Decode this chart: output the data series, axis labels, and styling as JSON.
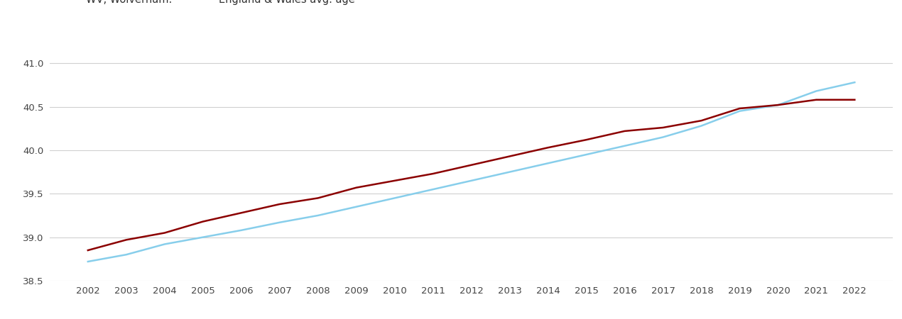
{
  "years": [
    2002,
    2003,
    2004,
    2005,
    2006,
    2007,
    2008,
    2009,
    2010,
    2011,
    2012,
    2013,
    2014,
    2015,
    2016,
    2017,
    2018,
    2019,
    2020,
    2021,
    2022
  ],
  "wv_wolverhampton": [
    38.85,
    38.97,
    39.05,
    39.18,
    39.28,
    39.38,
    39.45,
    39.57,
    39.65,
    39.73,
    39.83,
    39.93,
    40.03,
    40.12,
    40.22,
    40.26,
    40.34,
    40.48,
    40.52,
    40.58,
    40.58
  ],
  "england_wales": [
    38.72,
    38.8,
    38.92,
    39.0,
    39.08,
    39.17,
    39.25,
    39.35,
    39.45,
    39.55,
    39.65,
    39.75,
    39.85,
    39.95,
    40.05,
    40.15,
    40.28,
    40.45,
    40.52,
    40.68,
    40.78
  ],
  "wv_color": "#8B0000",
  "ew_color": "#87CEEB",
  "ylim_min": 38.5,
  "ylim_max": 41.25,
  "ytick_values": [
    38.5,
    39.0,
    39.5,
    40.0,
    40.5,
    41.0
  ],
  "ytick_labels": [
    "38.5",
    "39.0",
    "39.5",
    "40.0",
    "40.5",
    "41.0"
  ],
  "background_color": "#ffffff",
  "grid_color": "#d0d0d0",
  "line_width": 1.8
}
